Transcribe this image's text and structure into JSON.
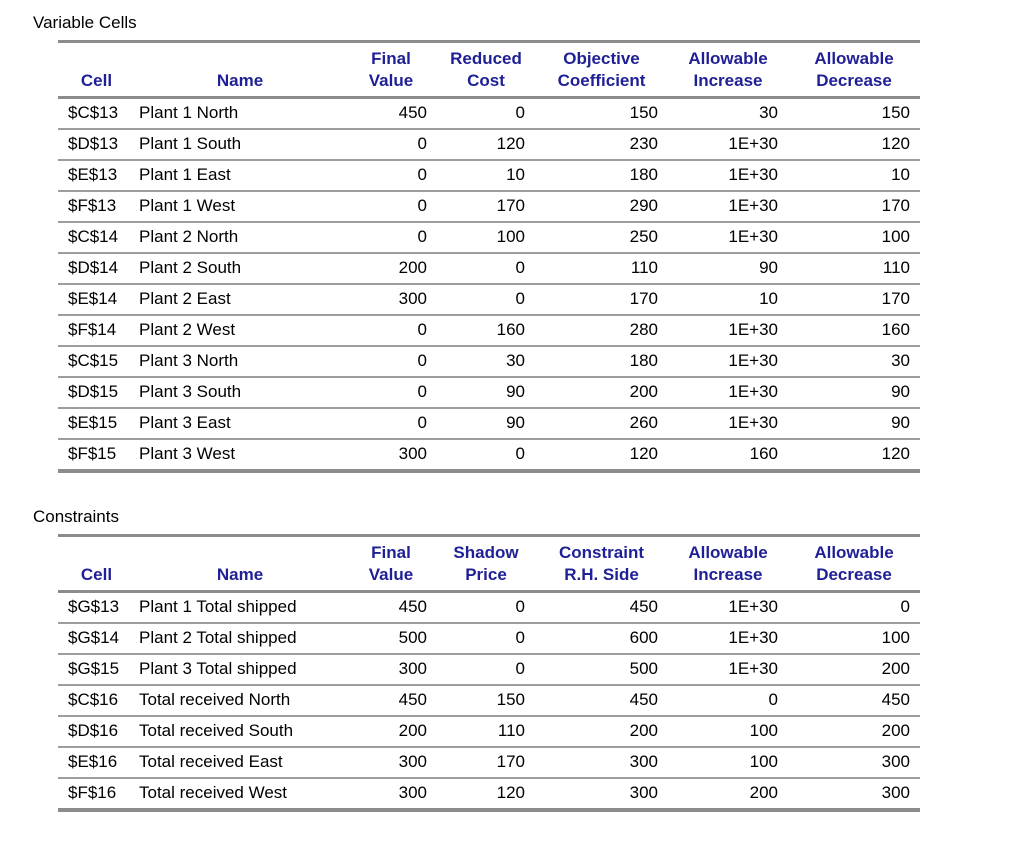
{
  "colors": {
    "header_text": "#1f1f96",
    "border_heavy": "#8c8c8c",
    "border_light": "#9d9d9d",
    "body_text": "#000000",
    "background": "#ffffff"
  },
  "variable_cells": {
    "title": "Variable Cells",
    "header": [
      [
        "",
        "",
        "Final",
        "Reduced",
        "Objective",
        "Allowable",
        "Allowable"
      ],
      [
        "Cell",
        "Name",
        "Value",
        "Cost",
        "Coefficient",
        "Increase",
        "Decrease"
      ]
    ],
    "rows": [
      [
        "$C$13",
        "Plant 1 North",
        "450",
        "0",
        "150",
        "30",
        "150"
      ],
      [
        "$D$13",
        "Plant 1 South",
        "0",
        "120",
        "230",
        "1E+30",
        "120"
      ],
      [
        "$E$13",
        "Plant 1 East",
        "0",
        "10",
        "180",
        "1E+30",
        "10"
      ],
      [
        "$F$13",
        "Plant 1 West",
        "0",
        "170",
        "290",
        "1E+30",
        "170"
      ],
      [
        "$C$14",
        "Plant 2 North",
        "0",
        "100",
        "250",
        "1E+30",
        "100"
      ],
      [
        "$D$14",
        "Plant 2 South",
        "200",
        "0",
        "110",
        "90",
        "110"
      ],
      [
        "$E$14",
        "Plant 2 East",
        "300",
        "0",
        "170",
        "10",
        "170"
      ],
      [
        "$F$14",
        "Plant 2 West",
        "0",
        "160",
        "280",
        "1E+30",
        "160"
      ],
      [
        "$C$15",
        "Plant 3 North",
        "0",
        "30",
        "180",
        "1E+30",
        "30"
      ],
      [
        "$D$15",
        "Plant 3 South",
        "0",
        "90",
        "200",
        "1E+30",
        "90"
      ],
      [
        "$E$15",
        "Plant 3 East",
        "0",
        "90",
        "260",
        "1E+30",
        "90"
      ],
      [
        "$F$15",
        "Plant 3 West",
        "300",
        "0",
        "120",
        "160",
        "120"
      ]
    ]
  },
  "constraints": {
    "title": "Constraints",
    "header": [
      [
        "",
        "",
        "Final",
        "Shadow",
        "Constraint",
        "Allowable",
        "Allowable"
      ],
      [
        "Cell",
        "Name",
        "Value",
        "Price",
        "R.H. Side",
        "Increase",
        "Decrease"
      ]
    ],
    "rows": [
      [
        "$G$13",
        "Plant 1 Total shipped",
        "450",
        "0",
        "450",
        "1E+30",
        "0"
      ],
      [
        "$G$14",
        "Plant 2 Total shipped",
        "500",
        "0",
        "600",
        "1E+30",
        "100"
      ],
      [
        "$G$15",
        "Plant 3 Total shipped",
        "300",
        "0",
        "500",
        "1E+30",
        "200"
      ],
      [
        "$C$16",
        "Total received North",
        "450",
        "150",
        "450",
        "0",
        "450"
      ],
      [
        "$D$16",
        "Total received South",
        "200",
        "110",
        "200",
        "100",
        "200"
      ],
      [
        "$E$16",
        "Total received East",
        "300",
        "170",
        "300",
        "100",
        "300"
      ],
      [
        "$F$16",
        "Total received West",
        "300",
        "120",
        "300",
        "200",
        "300"
      ]
    ]
  }
}
